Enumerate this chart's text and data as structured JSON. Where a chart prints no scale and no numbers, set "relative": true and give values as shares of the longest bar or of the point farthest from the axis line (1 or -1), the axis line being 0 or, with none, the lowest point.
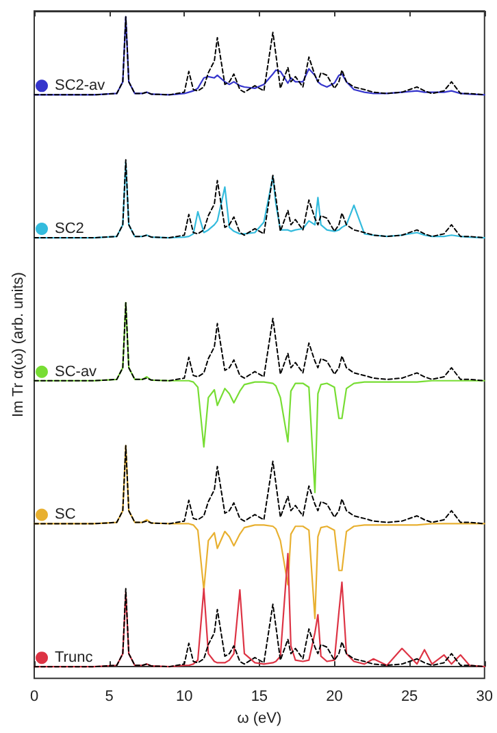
{
  "chart_data": {
    "type": "line",
    "relative": true,
    "xlabel": "ω (eV)",
    "ylabel": "Im Tr α(ω) (arb. units)",
    "xlim": [
      0,
      30
    ],
    "xticks": [
      0,
      5,
      10,
      15,
      20,
      25,
      30
    ],
    "marker": "none",
    "legend": "left",
    "grid": false,
    "x": [
      0,
      4,
      5.5,
      5.9,
      6.1,
      6.3,
      6.7,
      7.2,
      7.5,
      7.8,
      9,
      10,
      10.3,
      10.6,
      10.9,
      11.3,
      11.6,
      12,
      12.2,
      12.7,
      13,
      13.3,
      13.7,
      14,
      14.7,
      15.3,
      15.9,
      16.1,
      16.4,
      16.9,
      17.1,
      17.4,
      17.9,
      18.3,
      18.7,
      18.9,
      19.1,
      19.5,
      20,
      20.3,
      20.5,
      20.8,
      21.3,
      22,
      22.6,
      23.5,
      24.5,
      25.5,
      26,
      26.5,
      27.3,
      27.8,
      28.4,
      29,
      30
    ],
    "series": [
      {
        "name": "SC2-av",
        "color": "#3535cc",
        "line_style": "solid",
        "values": [
          0.88,
          0.88,
          0.882,
          0.9,
          1,
          0.9,
          0.882,
          0.882,
          0.884,
          0.881,
          0.88,
          0.882,
          0.884,
          0.886,
          0.89,
          0.906,
          0.908,
          0.906,
          0.91,
          0.9,
          0.896,
          0.9,
          0.894,
          0.892,
          0.89,
          0.896,
          0.912,
          0.918,
          0.916,
          0.898,
          0.906,
          0.9,
          0.9,
          0.92,
          0.91,
          0.9,
          0.896,
          0.892,
          0.898,
          0.91,
          0.912,
          0.9,
          0.888,
          0.884,
          0.882,
          0.882,
          0.884,
          0.886,
          0.884,
          0.884,
          0.884,
          0.886,
          0.882,
          0.881,
          0.88
        ]
      },
      {
        "color": "#000000",
        "line_style": "dashed",
        "values": [
          0.88,
          0.88,
          0.882,
          0.9,
          1,
          0.9,
          0.882,
          0.882,
          0.884,
          0.881,
          0.88,
          0.884,
          0.916,
          0.888,
          0.886,
          0.892,
          0.914,
          0.932,
          0.968,
          0.896,
          0.9,
          0.912,
          0.888,
          0.884,
          0.894,
          0.886,
          0.976,
          0.942,
          0.89,
          0.922,
          0.9,
          0.908,
          0.892,
          0.938,
          0.91,
          0.9,
          0.914,
          0.91,
          0.89,
          0.9,
          0.918,
          0.9,
          0.892,
          0.888,
          0.884,
          0.882,
          0.884,
          0.892,
          0.886,
          0.882,
          0.886,
          0.9,
          0.882,
          0.882,
          0.88
        ]
      },
      {
        "name": "SC2",
        "color": "#33bbdd",
        "line_style": "solid",
        "values": [
          0.66,
          0.66,
          0.662,
          0.68,
          0.776,
          0.68,
          0.662,
          0.662,
          0.664,
          0.661,
          0.66,
          0.661,
          0.662,
          0.666,
          0.7,
          0.668,
          0.672,
          0.68,
          0.686,
          0.738,
          0.676,
          0.67,
          0.666,
          0.666,
          0.668,
          0.684,
          0.754,
          0.712,
          0.672,
          0.672,
          0.67,
          0.672,
          0.674,
          0.686,
          0.68,
          0.722,
          0.68,
          0.672,
          0.67,
          0.672,
          0.676,
          0.68,
          0.71,
          0.666,
          0.664,
          0.662,
          0.664,
          0.668,
          0.664,
          0.662,
          0.662,
          0.664,
          0.662,
          0.661,
          0.66
        ]
      },
      {
        "color": "#000000",
        "line_style": "dashed",
        "values": [
          0.66,
          0.66,
          0.662,
          0.68,
          0.78,
          0.68,
          0.662,
          0.662,
          0.664,
          0.661,
          0.66,
          0.664,
          0.696,
          0.668,
          0.666,
          0.672,
          0.694,
          0.712,
          0.748,
          0.676,
          0.68,
          0.692,
          0.668,
          0.664,
          0.674,
          0.666,
          0.756,
          0.722,
          0.67,
          0.702,
          0.68,
          0.688,
          0.672,
          0.718,
          0.69,
          0.68,
          0.694,
          0.69,
          0.67,
          0.68,
          0.698,
          0.68,
          0.672,
          0.668,
          0.664,
          0.662,
          0.664,
          0.672,
          0.666,
          0.662,
          0.666,
          0.68,
          0.662,
          0.662,
          0.66
        ]
      },
      {
        "name": "SC-av",
        "color": "#77dd33",
        "line_style": "solid",
        "values": [
          0.44,
          0.44,
          0.442,
          0.46,
          0.56,
          0.46,
          0.442,
          0.442,
          0.446,
          0.441,
          0.44,
          0.44,
          0.44,
          0.438,
          0.43,
          0.338,
          0.414,
          0.426,
          0.402,
          0.428,
          0.42,
          0.406,
          0.424,
          0.434,
          0.438,
          0.438,
          0.436,
          0.432,
          0.414,
          0.346,
          0.424,
          0.436,
          0.436,
          0.43,
          0.268,
          0.42,
          0.434,
          0.436,
          0.43,
          0.382,
          0.382,
          0.428,
          0.436,
          0.438,
          0.438,
          0.438,
          0.438,
          0.438,
          0.439,
          0.44,
          0.44,
          0.44,
          0.44,
          0.44,
          0.44
        ]
      },
      {
        "color": "#000000",
        "line_style": "dashed",
        "values": [
          0.44,
          0.44,
          0.442,
          0.46,
          0.56,
          0.46,
          0.442,
          0.442,
          0.444,
          0.441,
          0.44,
          0.444,
          0.476,
          0.448,
          0.446,
          0.452,
          0.474,
          0.492,
          0.528,
          0.456,
          0.46,
          0.472,
          0.448,
          0.444,
          0.454,
          0.446,
          0.536,
          0.502,
          0.45,
          0.482,
          0.46,
          0.468,
          0.452,
          0.498,
          0.47,
          0.46,
          0.474,
          0.47,
          0.45,
          0.46,
          0.478,
          0.46,
          0.452,
          0.448,
          0.444,
          0.442,
          0.444,
          0.452,
          0.446,
          0.442,
          0.446,
          0.46,
          0.442,
          0.442,
          0.44
        ]
      },
      {
        "name": "SC",
        "color": "#e8b030",
        "line_style": "solid",
        "values": [
          0.22,
          0.22,
          0.222,
          0.24,
          0.34,
          0.24,
          0.222,
          0.222,
          0.226,
          0.221,
          0.22,
          0.22,
          0.22,
          0.218,
          0.21,
          0.118,
          0.194,
          0.206,
          0.182,
          0.208,
          0.2,
          0.186,
          0.204,
          0.214,
          0.218,
          0.218,
          0.216,
          0.212,
          0.194,
          0.126,
          0.204,
          0.216,
          0.216,
          0.21,
          0.074,
          0.2,
          0.214,
          0.216,
          0.21,
          0.148,
          0.148,
          0.208,
          0.216,
          0.218,
          0.218,
          0.218,
          0.218,
          0.218,
          0.219,
          0.22,
          0.22,
          0.22,
          0.22,
          0.22,
          0.22
        ]
      },
      {
        "color": "#000000",
        "line_style": "dashed",
        "values": [
          0.22,
          0.22,
          0.222,
          0.24,
          0.34,
          0.24,
          0.222,
          0.222,
          0.224,
          0.221,
          0.22,
          0.224,
          0.256,
          0.228,
          0.226,
          0.232,
          0.254,
          0.272,
          0.308,
          0.236,
          0.24,
          0.252,
          0.228,
          0.224,
          0.234,
          0.226,
          0.316,
          0.282,
          0.23,
          0.262,
          0.24,
          0.248,
          0.232,
          0.278,
          0.25,
          0.24,
          0.254,
          0.25,
          0.23,
          0.24,
          0.258,
          0.24,
          0.232,
          0.228,
          0.224,
          0.222,
          0.224,
          0.232,
          0.226,
          0.222,
          0.226,
          0.24,
          0.222,
          0.222,
          0.22
        ]
      },
      {
        "name": "Trunc",
        "color": "#dd3344",
        "line_style": "solid",
        "values": [
          0,
          0,
          0.002,
          0.02,
          0.114,
          0.02,
          0.002,
          0.002,
          0.004,
          0.001,
          0,
          0.002,
          0.002,
          0.004,
          0.01,
          0.12,
          0.02,
          0.008,
          0.006,
          0.006,
          0.01,
          0.02,
          0.118,
          0.02,
          0.006,
          0.004,
          0.006,
          0.008,
          0.016,
          0.174,
          0.032,
          0.01,
          0.008,
          0.01,
          0.052,
          0.08,
          0.016,
          0.008,
          0.01,
          0.084,
          0.13,
          0.02,
          0.008,
          0.004,
          0.012,
          0.002,
          0.028,
          0.004,
          0.026,
          0.004,
          0.018,
          0.004,
          0.018,
          0.002,
          0
        ]
      },
      {
        "color": "#000000",
        "line_style": "dashed",
        "values": [
          0,
          0,
          0.002,
          0.02,
          0.12,
          0.02,
          0.002,
          0.002,
          0.004,
          0.001,
          0,
          0.004,
          0.036,
          0.008,
          0.006,
          0.012,
          0.034,
          0.052,
          0.088,
          0.016,
          0.02,
          0.032,
          0.008,
          0.004,
          0.014,
          0.006,
          0.096,
          0.062,
          0.01,
          0.042,
          0.02,
          0.028,
          0.012,
          0.058,
          0.03,
          0.02,
          0.034,
          0.03,
          0.01,
          0.02,
          0.038,
          0.02,
          0.012,
          0.008,
          0.004,
          0.002,
          0.004,
          0.012,
          0.006,
          0.002,
          0.006,
          0.02,
          0.002,
          0.002,
          0
        ]
      }
    ]
  }
}
